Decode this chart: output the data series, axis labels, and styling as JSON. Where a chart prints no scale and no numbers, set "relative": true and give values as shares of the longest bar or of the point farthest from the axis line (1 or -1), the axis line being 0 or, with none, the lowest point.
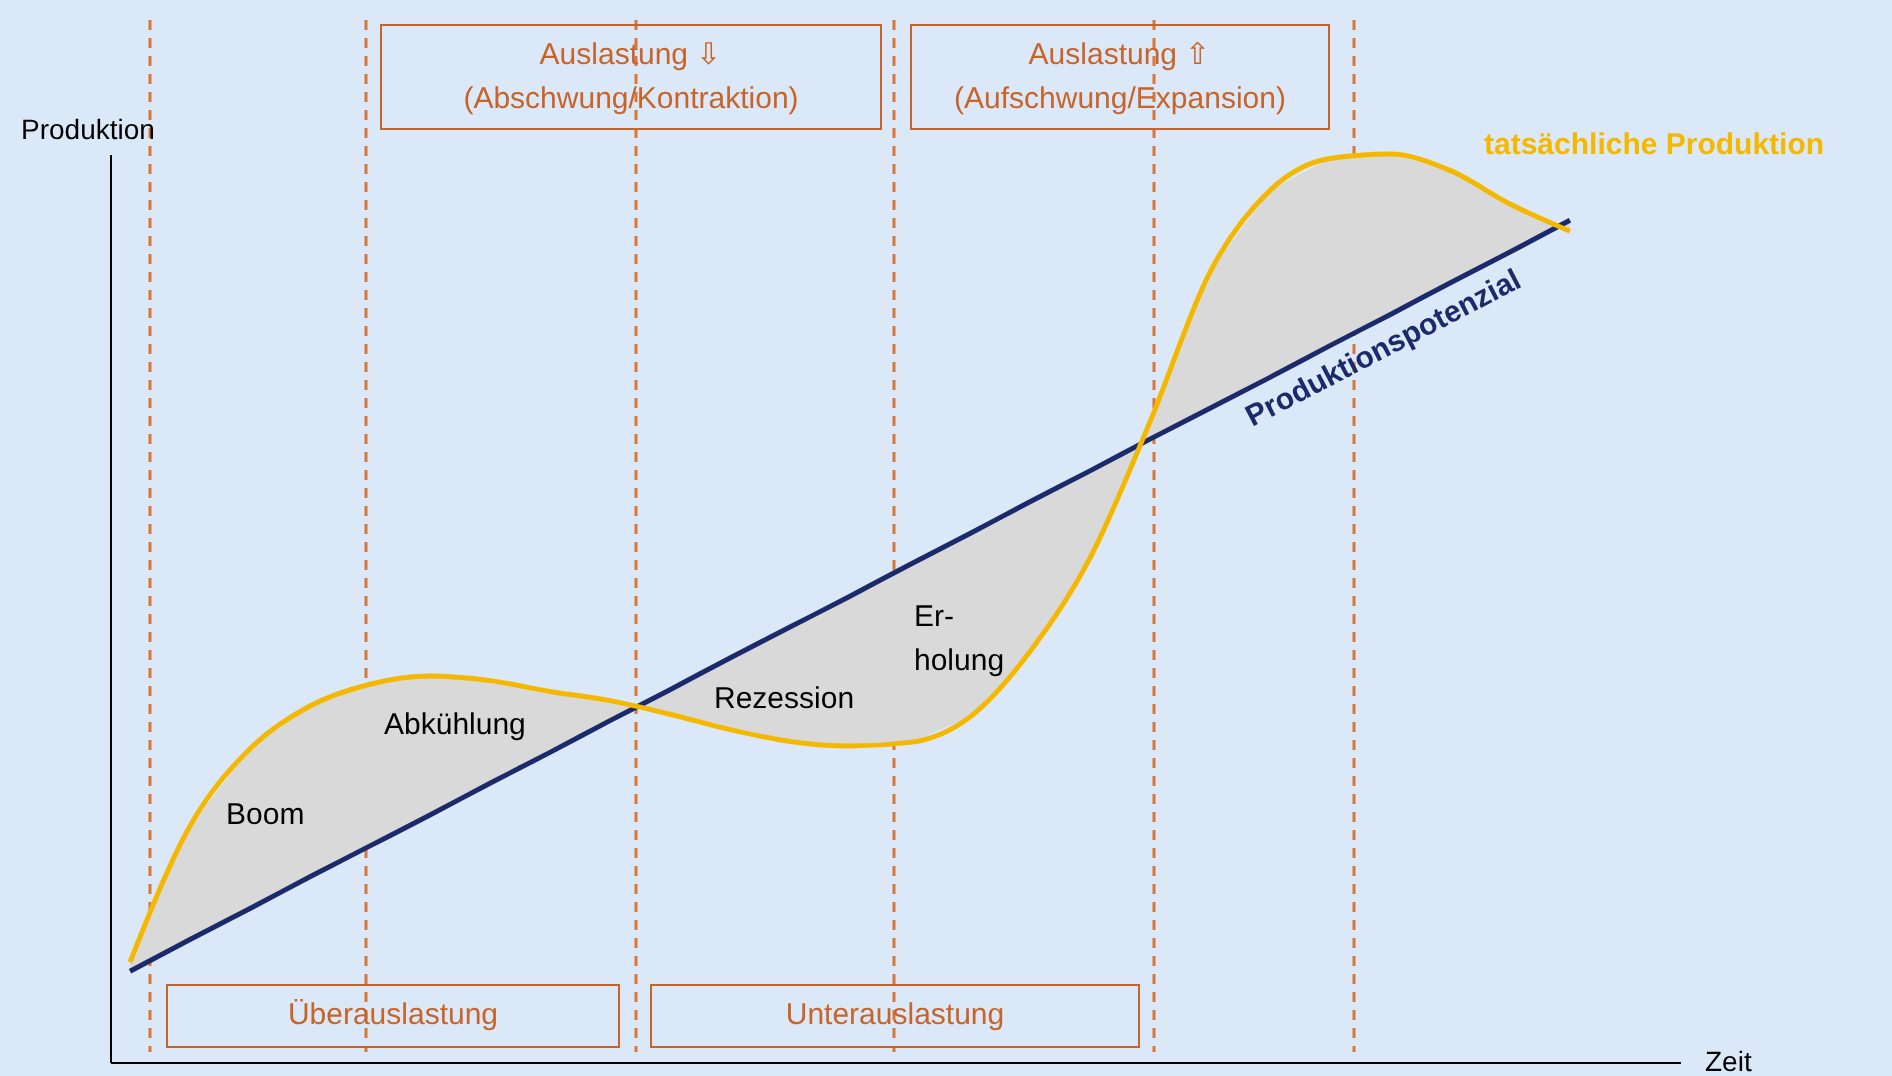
{
  "chart_data": {
    "type": "line",
    "relative": true,
    "xlabel": "Zeit",
    "ylabel": "Produktion",
    "categories": [
      null,
      null,
      null,
      null,
      null,
      null,
      null,
      null,
      null,
      null,
      null,
      null,
      null,
      null,
      null,
      null,
      null,
      null,
      null,
      null,
      null,
      null,
      null,
      null,
      null
    ],
    "series": [
      {
        "name": "Produktionspotenzial",
        "color": "#1b2a6b",
        "values": [
          0.1,
          0.135,
          0.169,
          0.204,
          0.238,
          0.272,
          0.307,
          0.341,
          0.376,
          0.41,
          0.445,
          0.479,
          0.513,
          0.548,
          0.582,
          0.617,
          0.651,
          0.686,
          0.72,
          0.754,
          0.789,
          0.823,
          0.858,
          0.892,
          0.927
        ]
      },
      {
        "name": "tatsächliche Produktion",
        "color": "#f5b800",
        "values": [
          0.11,
          0.26,
          0.345,
          0.392,
          0.416,
          0.425,
          0.42,
          0.408,
          0.398,
          0.383,
          0.366,
          0.353,
          0.348,
          0.352,
          0.38,
          0.452,
          0.555,
          0.705,
          0.87,
          0.96,
          0.995,
          1,
          0.982,
          0.945,
          0.915
        ],
        "lower": [
          0.1,
          0.135,
          0.169,
          0.204,
          0.238,
          0.272,
          0.307,
          0.341,
          0.376,
          0.41,
          0.445,
          0.479,
          0.513,
          0.548,
          0.582,
          0.617,
          0.651,
          0.686,
          0.72,
          0.754,
          0.789,
          0.823,
          0.858,
          0.892,
          0.927
        ],
        "upper": [
          0.11,
          0.26,
          0.345,
          0.392,
          0.416,
          0.425,
          0.42,
          0.408,
          0.398,
          0.383,
          0.366,
          0.353,
          0.348,
          0.352,
          0.38,
          0.452,
          0.555,
          0.705,
          0.87,
          0.96,
          0.995,
          1,
          0.982,
          0.945,
          0.915
        ]
      }
    ],
    "annotations": [
      "Auslastung ⇩\n(Abschwung/Kontraktion)",
      "Auslastung ⇧\n(Aufschwung/Expansion)",
      "Überauslastung",
      "Unterauslastung",
      "Boom",
      "Abkühlung",
      "Rezession",
      "Er-\nholung"
    ]
  }
}
